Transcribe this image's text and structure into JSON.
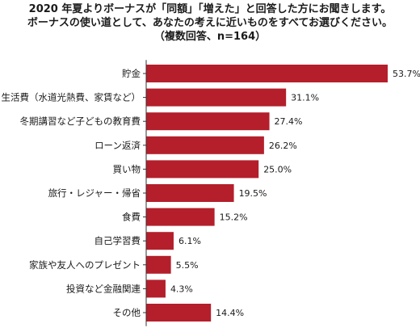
{
  "chart_data": {
    "type": "bar",
    "orientation": "horizontal",
    "title_lines": [
      "2020 年夏よりボーナスが「同額」「増えた」と回答した方にお聞きします。",
      "ボーナスの使い道として、あなたの考えに近いものをすべてお選びください。",
      "（複数回答、n=164）"
    ],
    "categories": [
      "貯金",
      "生活費（水道光熱費、家賃など）",
      "冬期講習など子どもの教育費",
      "ローン返済",
      "買い物",
      "旅行・レジャー・帰省",
      "食費",
      "自己学習費",
      "家族や友人へのプレゼント",
      "投資など金融関連",
      "その他"
    ],
    "values": [
      53.7,
      31.1,
      27.4,
      26.2,
      25.0,
      19.5,
      15.2,
      6.1,
      5.5,
      4.3,
      14.4
    ],
    "value_labels": [
      "53.7%",
      "31.1%",
      "27.4%",
      "26.2%",
      "25.0%",
      "19.5%",
      "15.2%",
      "6.1%",
      "5.5%",
      "4.3%",
      "14.4%"
    ],
    "bar_color": "#b41f2b",
    "xlim": [
      0,
      53.7
    ],
    "grid": false
  }
}
